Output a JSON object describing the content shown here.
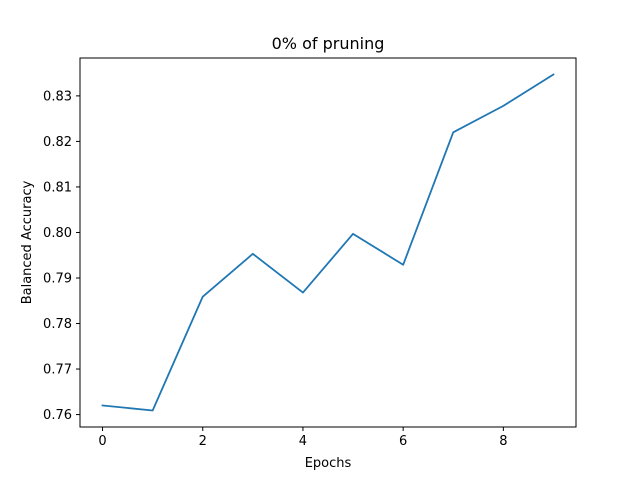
{
  "chart_data": {
    "type": "line",
    "title": "0% of pruning",
    "xlabel": "Epochs",
    "ylabel": "Balanced Accuracy",
    "x": [
      0,
      1,
      2,
      3,
      4,
      5,
      6,
      7,
      8,
      9
    ],
    "series": [
      {
        "values": [
          0.762,
          0.7609,
          0.7859,
          0.7953,
          0.7868,
          0.7997,
          0.7929,
          0.822,
          0.8278,
          0.8347
        ],
        "color": "#1f77b4"
      }
    ],
    "xlim": [
      -0.45,
      9.45
    ],
    "ylim": [
      0.75727,
      0.83832
    ],
    "xticks": [
      0,
      2,
      4,
      6,
      8
    ],
    "xtick_labels": [
      "0",
      "2",
      "4",
      "6",
      "8"
    ],
    "yticks": [
      0.76,
      0.77,
      0.78,
      0.79,
      0.8,
      0.81,
      0.82,
      0.83
    ],
    "ytick_labels": [
      "0.76",
      "0.77",
      "0.78",
      "0.79",
      "0.80",
      "0.81",
      "0.82",
      "0.83"
    ],
    "grid": false,
    "legend": "none"
  }
}
